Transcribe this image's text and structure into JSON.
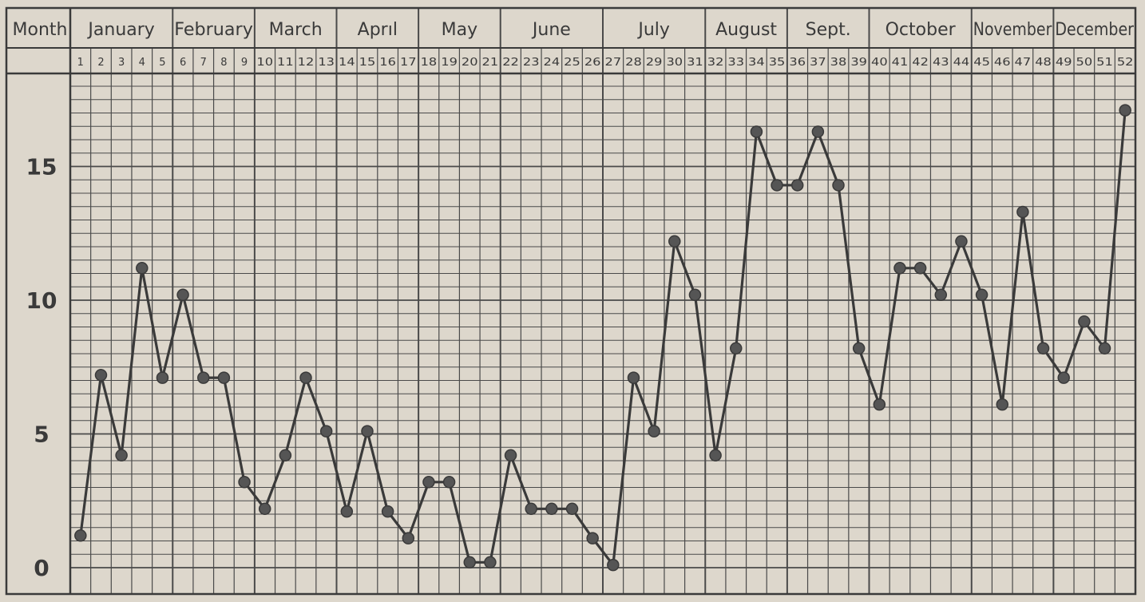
{
  "chart_data": {
    "type": "line",
    "header_label": "Month",
    "months": [
      {
        "label": "January",
        "weeks": [
          1,
          5
        ]
      },
      {
        "label": "February",
        "weeks": [
          6,
          9
        ]
      },
      {
        "label": "March",
        "weeks": [
          10,
          13
        ]
      },
      {
        "label": "Aprıl",
        "weeks": [
          14,
          17
        ]
      },
      {
        "label": "May",
        "weeks": [
          18,
          21
        ]
      },
      {
        "label": "June",
        "weeks": [
          22,
          26
        ]
      },
      {
        "label": "July",
        "weeks": [
          27,
          31
        ]
      },
      {
        "label": "August",
        "weeks": [
          32,
          35
        ]
      },
      {
        "label": "Sept.",
        "weeks": [
          36,
          39
        ]
      },
      {
        "label": "October",
        "weeks": [
          40,
          44
        ]
      },
      {
        "label": "November",
        "weeks": [
          45,
          48
        ]
      },
      {
        "label": "December",
        "weeks": [
          49,
          52
        ]
      }
    ],
    "x": [
      1,
      2,
      3,
      4,
      5,
      6,
      7,
      8,
      9,
      10,
      11,
      12,
      13,
      14,
      15,
      16,
      17,
      18,
      19,
      20,
      21,
      22,
      23,
      24,
      25,
      26,
      27,
      28,
      29,
      30,
      31,
      32,
      33,
      34,
      35,
      36,
      37,
      38,
      39,
      40,
      41,
      42,
      43,
      44,
      45,
      46,
      47,
      48,
      49,
      50,
      51,
      52
    ],
    "y": [
      1.2,
      7.2,
      4.2,
      11.2,
      7.1,
      10.2,
      7.1,
      7.1,
      3.2,
      2.2,
      4.2,
      7.1,
      5.1,
      2.1,
      5.1,
      2.1,
      1.1,
      3.2,
      3.2,
      0.2,
      0.2,
      4.2,
      2.2,
      2.2,
      2.2,
      1.1,
      0.1,
      7.1,
      5.1,
      12.2,
      10.2,
      4.2,
      8.2,
      16.3,
      14.3,
      14.3,
      16.3,
      14.3,
      8.2,
      6.1,
      11.2,
      11.2,
      10.2,
      12.2,
      10.2,
      6.1,
      13.3,
      8.2,
      7.1,
      9.2,
      8.2,
      17.1
    ],
    "yticks": [
      0,
      5,
      10,
      15
    ],
    "ylim": [
      0,
      18.5
    ],
    "grid": true,
    "colors": {
      "background": "#ddd7cc",
      "ink": "#3a3a3a",
      "grid": "#4a4a4a"
    }
  }
}
